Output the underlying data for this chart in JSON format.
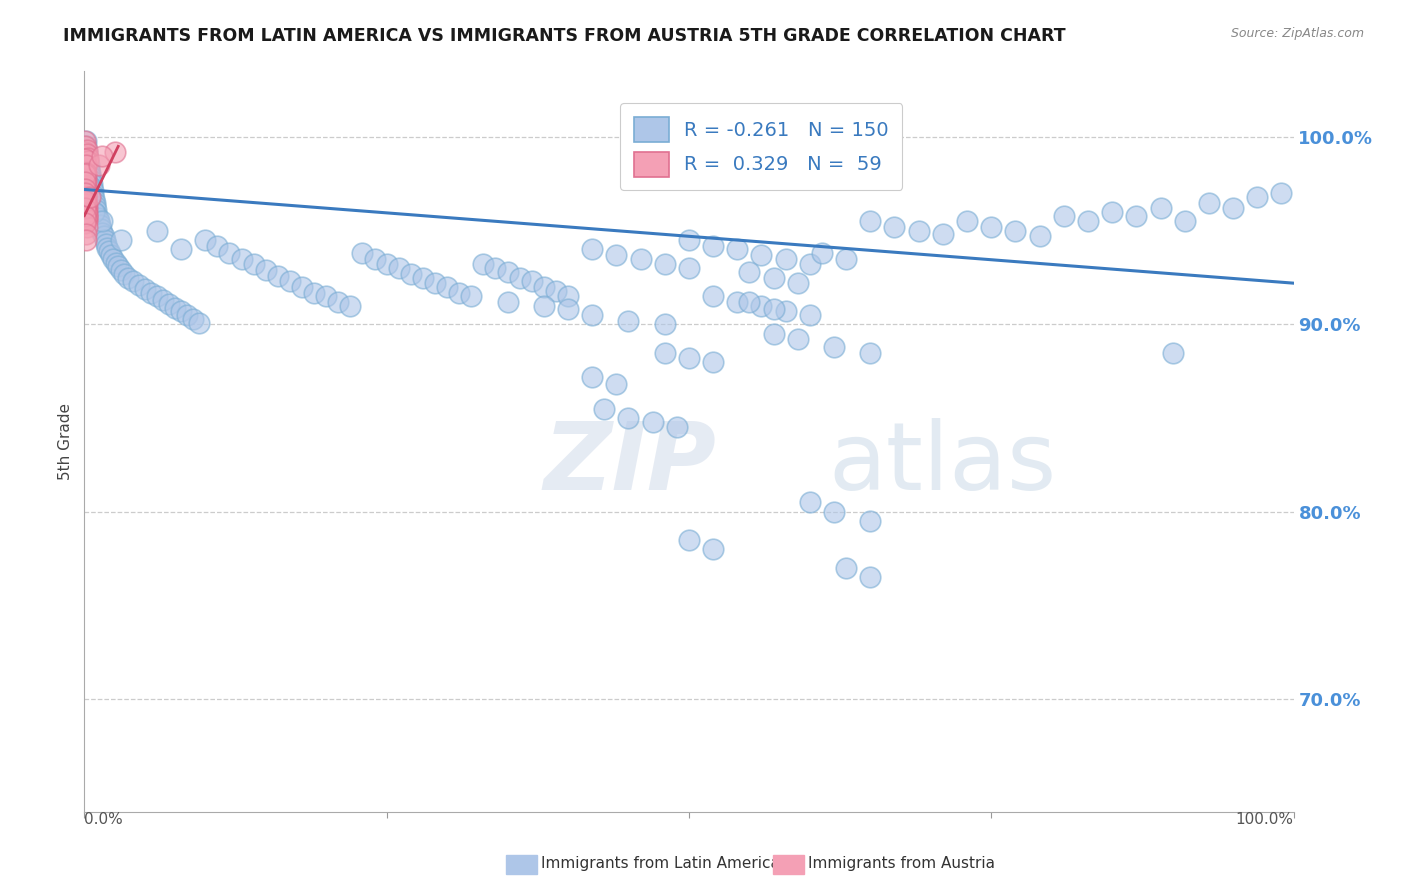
{
  "title": "IMMIGRANTS FROM LATIN AMERICA VS IMMIGRANTS FROM AUSTRIA 5TH GRADE CORRELATION CHART",
  "source": "Source: ZipAtlas.com",
  "ylabel": "5th Grade",
  "blue_R": "-0.261",
  "blue_N": "150",
  "pink_R": "0.329",
  "pink_N": "59",
  "blue_color": "#aec6e8",
  "pink_color": "#f4a0b5",
  "blue_edge_color": "#7aadd4",
  "pink_edge_color": "#e07090",
  "trend_color": "#3a7abf",
  "pink_trend_color": "#d04060",
  "watermark_zip": "ZIP",
  "watermark_atlas": "atlas",
  "legend_label_blue": "Immigrants from Latin America",
  "legend_label_pink": "Immigrants from Austria",
  "xlim": [
    0.0,
    100.0
  ],
  "ylim": [
    64.0,
    103.5
  ],
  "yticks": [
    70.0,
    80.0,
    90.0,
    100.0
  ],
  "blue_trend_x": [
    0.0,
    100.0
  ],
  "blue_trend_y": [
    97.2,
    92.2
  ],
  "pink_trend_x": [
    0.0,
    2.8
  ],
  "pink_trend_y": [
    95.8,
    99.5
  ],
  "blue_scatter": [
    [
      0.1,
      99.8
    ],
    [
      0.15,
      99.5
    ],
    [
      0.2,
      99.2
    ],
    [
      0.25,
      99.0
    ],
    [
      0.3,
      98.8
    ],
    [
      0.35,
      98.5
    ],
    [
      0.4,
      98.3
    ],
    [
      0.45,
      98.1
    ],
    [
      0.5,
      97.9
    ],
    [
      0.55,
      97.7
    ],
    [
      0.6,
      97.5
    ],
    [
      0.65,
      97.3
    ],
    [
      0.7,
      97.1
    ],
    [
      0.75,
      96.9
    ],
    [
      0.8,
      96.7
    ],
    [
      0.85,
      96.5
    ],
    [
      0.9,
      96.3
    ],
    [
      0.95,
      96.1
    ],
    [
      1.0,
      95.9
    ],
    [
      1.1,
      95.7
    ],
    [
      1.2,
      95.5
    ],
    [
      1.3,
      95.3
    ],
    [
      1.4,
      95.1
    ],
    [
      1.5,
      94.9
    ],
    [
      1.6,
      94.7
    ],
    [
      1.7,
      94.5
    ],
    [
      1.8,
      94.3
    ],
    [
      1.9,
      94.1
    ],
    [
      2.0,
      93.9
    ],
    [
      2.2,
      93.7
    ],
    [
      2.4,
      93.5
    ],
    [
      2.6,
      93.3
    ],
    [
      2.8,
      93.1
    ],
    [
      3.0,
      92.9
    ],
    [
      3.3,
      92.7
    ],
    [
      3.6,
      92.5
    ],
    [
      4.0,
      92.3
    ],
    [
      4.5,
      92.1
    ],
    [
      5.0,
      91.9
    ],
    [
      5.5,
      91.7
    ],
    [
      6.0,
      91.5
    ],
    [
      6.5,
      91.3
    ],
    [
      7.0,
      91.1
    ],
    [
      7.5,
      90.9
    ],
    [
      8.0,
      90.7
    ],
    [
      8.5,
      90.5
    ],
    [
      9.0,
      90.3
    ],
    [
      9.5,
      90.1
    ],
    [
      10.0,
      94.5
    ],
    [
      11.0,
      94.2
    ],
    [
      12.0,
      93.8
    ],
    [
      13.0,
      93.5
    ],
    [
      14.0,
      93.2
    ],
    [
      15.0,
      92.9
    ],
    [
      16.0,
      92.6
    ],
    [
      17.0,
      92.3
    ],
    [
      18.0,
      92.0
    ],
    [
      19.0,
      91.7
    ],
    [
      20.0,
      91.5
    ],
    [
      21.0,
      91.2
    ],
    [
      22.0,
      91.0
    ],
    [
      23.0,
      93.8
    ],
    [
      24.0,
      93.5
    ],
    [
      25.0,
      93.2
    ],
    [
      26.0,
      93.0
    ],
    [
      27.0,
      92.7
    ],
    [
      28.0,
      92.5
    ],
    [
      29.0,
      92.2
    ],
    [
      30.0,
      92.0
    ],
    [
      31.0,
      91.7
    ],
    [
      32.0,
      91.5
    ],
    [
      33.0,
      93.2
    ],
    [
      34.0,
      93.0
    ],
    [
      35.0,
      92.8
    ],
    [
      36.0,
      92.5
    ],
    [
      37.0,
      92.3
    ],
    [
      38.0,
      92.0
    ],
    [
      39.0,
      91.8
    ],
    [
      40.0,
      91.5
    ],
    [
      42.0,
      94.0
    ],
    [
      44.0,
      93.7
    ],
    [
      46.0,
      93.5
    ],
    [
      48.0,
      93.2
    ],
    [
      50.0,
      93.0
    ],
    [
      35.0,
      91.2
    ],
    [
      38.0,
      91.0
    ],
    [
      40.0,
      90.8
    ],
    [
      42.0,
      90.5
    ],
    [
      45.0,
      90.2
    ],
    [
      48.0,
      90.0
    ],
    [
      50.0,
      94.5
    ],
    [
      52.0,
      94.2
    ],
    [
      54.0,
      94.0
    ],
    [
      56.0,
      93.7
    ],
    [
      58.0,
      93.5
    ],
    [
      60.0,
      93.2
    ],
    [
      55.0,
      92.8
    ],
    [
      57.0,
      92.5
    ],
    [
      59.0,
      92.2
    ],
    [
      61.0,
      93.8
    ],
    [
      63.0,
      93.5
    ],
    [
      65.0,
      95.5
    ],
    [
      67.0,
      95.2
    ],
    [
      69.0,
      95.0
    ],
    [
      71.0,
      94.8
    ],
    [
      73.0,
      95.5
    ],
    [
      75.0,
      95.2
    ],
    [
      77.0,
      95.0
    ],
    [
      79.0,
      94.7
    ],
    [
      81.0,
      95.8
    ],
    [
      83.0,
      95.5
    ],
    [
      85.0,
      96.0
    ],
    [
      87.0,
      95.8
    ],
    [
      89.0,
      96.2
    ],
    [
      91.0,
      95.5
    ],
    [
      93.0,
      96.5
    ],
    [
      95.0,
      96.2
    ],
    [
      97.0,
      96.8
    ],
    [
      99.0,
      97.0
    ],
    [
      52.0,
      91.5
    ],
    [
      54.0,
      91.2
    ],
    [
      56.0,
      91.0
    ],
    [
      58.0,
      90.7
    ],
    [
      60.0,
      90.5
    ],
    [
      48.0,
      88.5
    ],
    [
      50.0,
      88.2
    ],
    [
      52.0,
      88.0
    ],
    [
      55.0,
      91.2
    ],
    [
      57.0,
      90.8
    ],
    [
      43.0,
      85.5
    ],
    [
      45.0,
      85.0
    ],
    [
      47.0,
      84.8
    ],
    [
      49.0,
      84.5
    ],
    [
      57.0,
      89.5
    ],
    [
      59.0,
      89.2
    ],
    [
      62.0,
      88.8
    ],
    [
      65.0,
      88.5
    ],
    [
      60.0,
      80.5
    ],
    [
      62.0,
      80.0
    ],
    [
      65.0,
      79.5
    ],
    [
      63.0,
      77.0
    ],
    [
      65.0,
      76.5
    ],
    [
      90.0,
      88.5
    ],
    [
      42.0,
      87.2
    ],
    [
      44.0,
      86.8
    ],
    [
      50.0,
      78.5
    ],
    [
      52.0,
      78.0
    ],
    [
      0.3,
      97.5
    ],
    [
      0.5,
      96.8
    ],
    [
      0.8,
      96.0
    ],
    [
      1.5,
      95.5
    ],
    [
      3.0,
      94.5
    ],
    [
      6.0,
      95.0
    ],
    [
      8.0,
      94.0
    ]
  ],
  "pink_scatter": [
    [
      0.02,
      99.8
    ],
    [
      0.03,
      99.5
    ],
    [
      0.04,
      99.2
    ],
    [
      0.05,
      99.0
    ],
    [
      0.06,
      98.8
    ],
    [
      0.07,
      98.5
    ],
    [
      0.08,
      98.3
    ],
    [
      0.09,
      98.1
    ],
    [
      0.1,
      97.9
    ],
    [
      0.11,
      97.7
    ],
    [
      0.12,
      97.5
    ],
    [
      0.13,
      97.3
    ],
    [
      0.14,
      97.1
    ],
    [
      0.15,
      96.9
    ],
    [
      0.16,
      96.7
    ],
    [
      0.17,
      96.5
    ],
    [
      0.18,
      96.3
    ],
    [
      0.19,
      96.1
    ],
    [
      0.2,
      95.9
    ],
    [
      0.21,
      95.7
    ],
    [
      0.22,
      95.5
    ],
    [
      0.23,
      99.3
    ],
    [
      0.25,
      99.1
    ],
    [
      0.27,
      98.9
    ],
    [
      0.3,
      98.7
    ],
    [
      0.03,
      98.2
    ],
    [
      0.05,
      97.8
    ],
    [
      0.07,
      97.4
    ],
    [
      0.09,
      97.0
    ],
    [
      0.12,
      96.5
    ],
    [
      0.15,
      96.2
    ],
    [
      0.18,
      95.8
    ],
    [
      0.08,
      98.8
    ],
    [
      0.1,
      98.5
    ],
    [
      0.13,
      98.1
    ],
    [
      0.04,
      97.2
    ],
    [
      0.06,
      96.8
    ],
    [
      0.08,
      96.4
    ],
    [
      0.1,
      96.0
    ],
    [
      0.12,
      95.6
    ],
    [
      0.04,
      98.0
    ],
    [
      0.06,
      97.6
    ],
    [
      0.08,
      97.2
    ],
    [
      0.1,
      96.8
    ],
    [
      0.12,
      96.4
    ],
    [
      0.14,
      96.0
    ],
    [
      0.16,
      95.6
    ],
    [
      0.18,
      95.2
    ],
    [
      0.02,
      97.0
    ],
    [
      0.03,
      96.6
    ],
    [
      0.05,
      96.2
    ],
    [
      0.07,
      95.8
    ],
    [
      0.09,
      95.4
    ],
    [
      0.1,
      94.8
    ],
    [
      0.15,
      94.5
    ],
    [
      1.2,
      98.5
    ],
    [
      2.5,
      99.2
    ],
    [
      0.5,
      96.8
    ],
    [
      1.5,
      99.0
    ]
  ]
}
